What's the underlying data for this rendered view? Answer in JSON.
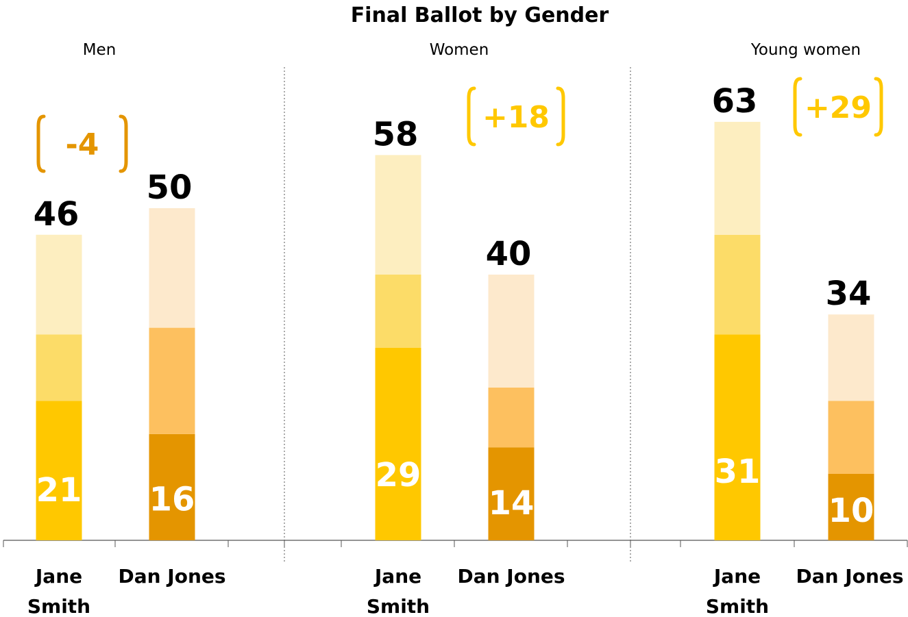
{
  "chart_data": {
    "type": "bar",
    "title": "Final Ballot by Gender",
    "categories": [
      "Jane Smith",
      "Dan Jones"
    ],
    "ylim": [
      0,
      70
    ],
    "grid": false,
    "panels": [
      {
        "name": "Men",
        "margin": "-4",
        "candidates": [
          {
            "label": "Jane Smith",
            "total": 46,
            "segments": [
              21,
              10,
              15
            ],
            "base_label": "21"
          },
          {
            "label": "Dan Jones",
            "total": 50,
            "segments": [
              16,
              16,
              18
            ],
            "base_label": "16"
          }
        ]
      },
      {
        "name": "Women",
        "margin": "+18",
        "candidates": [
          {
            "label": "Jane Smith",
            "total": 58,
            "segments": [
              29,
              11,
              18
            ],
            "base_label": "29"
          },
          {
            "label": "Dan Jones",
            "total": 40,
            "segments": [
              14,
              9,
              17
            ],
            "base_label": "14"
          }
        ]
      },
      {
        "name": "Young women",
        "margin": "+29",
        "candidates": [
          {
            "label": "Jane Smith",
            "total": 63,
            "segments": [
              31,
              15,
              17
            ],
            "base_label": "31"
          },
          {
            "label": "Dan Jones",
            "total": 34,
            "segments": [
              10,
              11,
              13
            ],
            "base_label": "10"
          }
        ]
      }
    ]
  },
  "colors": {
    "jane_segments": [
      "#ffc800",
      "#fcdc68",
      "#fdeec0"
    ],
    "dan_segments": [
      "#e49500",
      "#fdc05f",
      "#fde9cc"
    ],
    "margin_men": "#e49500",
    "margin_women": "#ffc800",
    "axis": "#555555",
    "divider": "#555555"
  }
}
